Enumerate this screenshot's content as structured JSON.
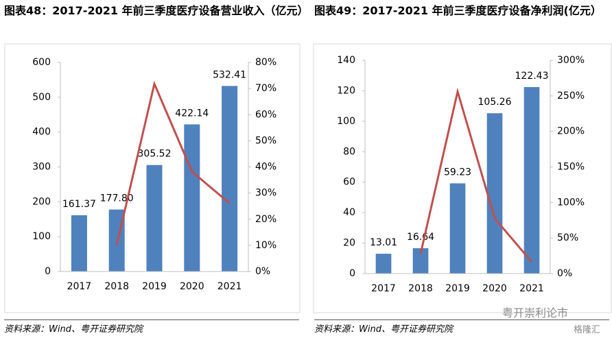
{
  "chart_data": [
    {
      "type": "bar",
      "title": "图表48：2017-2021 年前三季度医疗设备营业收入（亿元）",
      "categories": [
        "2017",
        "2018",
        "2019",
        "2020",
        "2021"
      ],
      "series": [
        {
          "color": "#4f81bd",
          "values": [
            161.37,
            177.8,
            305.52,
            422.14,
            532.41
          ],
          "value_labels": [
            "161.37",
            "177.80",
            "305.52",
            "422.14",
            "532.41"
          ]
        },
        {
          "type": "line",
          "axis": "y2",
          "color": "#c0504d",
          "values": [
            null,
            10.2,
            71.8,
            38.2,
            26.1
          ]
        }
      ],
      "ylim": [
        0,
        600
      ],
      "yticks": [
        0,
        100,
        200,
        300,
        400,
        500,
        600
      ],
      "y2lim": [
        0,
        80
      ],
      "y2ticks": [
        {
          "value": 0,
          "label": "0%"
        },
        {
          "value": 10,
          "label": "10%"
        },
        {
          "value": 20,
          "label": "20%"
        },
        {
          "value": 30,
          "label": "30%"
        },
        {
          "value": 40,
          "label": "40%"
        },
        {
          "value": 50,
          "label": "50%"
        },
        {
          "value": 60,
          "label": "60%"
        },
        {
          "value": 70,
          "label": "70%"
        },
        {
          "value": 80,
          "label": "80%"
        }
      ],
      "source": "资料来源：Wind、粤开证券研究院"
    },
    {
      "type": "bar",
      "title": "图表49：2017-2021 年前三季度医疗设备净利润(亿元）",
      "categories": [
        "2017",
        "2018",
        "2019",
        "2020",
        "2021"
      ],
      "series": [
        {
          "color": "#4f81bd",
          "values": [
            13.01,
            16.64,
            59.23,
            105.26,
            122.43
          ]
        },
        {
          "type": "line",
          "axis": "y2",
          "color": "#c0504d",
          "values": [
            null,
            27.9,
            256,
            77.7,
            16.3
          ]
        }
      ],
      "ylim": [
        0,
        140
      ],
      "yticks": [
        0,
        20,
        40,
        60,
        80,
        100,
        120,
        140
      ],
      "y2lim": [
        0,
        300
      ],
      "y2ticks": [
        {
          "value": 0,
          "label": "0%"
        },
        {
          "value": 50,
          "label": "50%"
        },
        {
          "value": 100,
          "label": "100%"
        },
        {
          "value": 150,
          "label": "150%"
        },
        {
          "value": 200,
          "label": "200%"
        },
        {
          "value": 250,
          "label": "250%"
        },
        {
          "value": 300,
          "label": "300%"
        }
      ],
      "source": "资料来源：Wind、粤开证券研究院"
    }
  ],
  "watermark": "粤开崇利论市",
  "watermark_badge": "格隆汇"
}
